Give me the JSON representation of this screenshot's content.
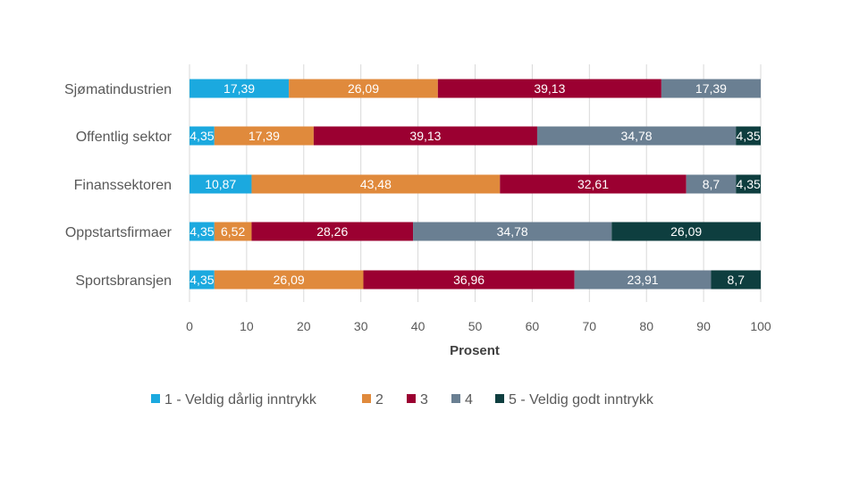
{
  "chart_data": {
    "type": "bar",
    "orientation": "horizontal",
    "stacked": true,
    "title": "",
    "xlabel": "Prosent",
    "ylabel": "",
    "xlim": [
      0,
      100
    ],
    "xticks": [
      "0",
      "10",
      "20",
      "30",
      "40",
      "50",
      "60",
      "70",
      "80",
      "90",
      "100"
    ],
    "grid": "vertical",
    "legend_position": "bottom",
    "categories": [
      "Sjømatindustrien",
      "Offentlig sektor",
      "Finanssektoren",
      "Oppstartsfirmaer",
      "Sportsbransjen"
    ],
    "series": [
      {
        "name": "1 - Veldig dårlig inntrykk",
        "color": "#1BA9DF",
        "values": [
          17.39,
          4.35,
          10.87,
          4.35,
          4.35
        ],
        "labels": [
          "17,39",
          "4,35",
          "10,87",
          "4,35",
          "4,35"
        ]
      },
      {
        "name": "2",
        "color": "#E08A3C",
        "values": [
          26.09,
          17.39,
          43.48,
          6.52,
          26.09
        ],
        "labels": [
          "26,09",
          "17,39",
          "43,48",
          "6,52",
          "26,09"
        ]
      },
      {
        "name": "3",
        "color": "#9B0031",
        "values": [
          39.13,
          39.13,
          32.61,
          28.26,
          36.96
        ],
        "labels": [
          "39,13",
          "39,13",
          "32,61",
          "28,26",
          "36,96"
        ]
      },
      {
        "name": "4",
        "color": "#6A7F92",
        "values": [
          17.39,
          34.78,
          8.7,
          34.78,
          23.91
        ],
        "labels": [
          "17,39",
          "34,78",
          "8,7",
          "34,78",
          "23,91"
        ]
      },
      {
        "name": "5 - Veldig godt inntrykk",
        "color": "#0E3E3F",
        "values": [
          0,
          4.35,
          4.35,
          26.09,
          8.7
        ],
        "labels": [
          "",
          "4,35",
          "4,35",
          "26,09",
          "8,7"
        ]
      }
    ]
  }
}
